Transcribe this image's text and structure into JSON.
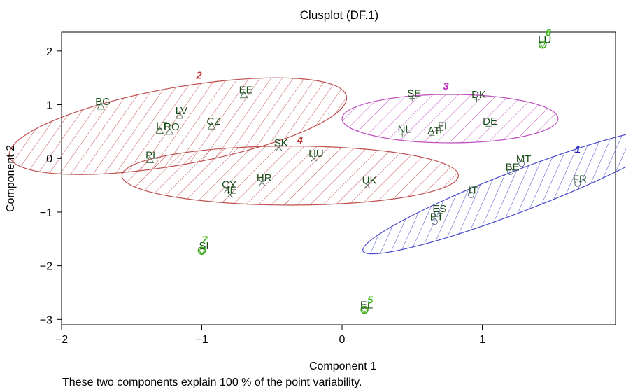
{
  "chart_data": {
    "type": "scatter",
    "title": "Clusplot (DF.1)",
    "xlabel": "Component 1",
    "ylabel": "Component 2",
    "subtitle": "These two components explain 100 % of the point variability.",
    "xlim": [
      -2.0,
      1.95
    ],
    "ylim": [
      -3.1,
      2.35
    ],
    "xticks": [
      -2,
      -1,
      0,
      1
    ],
    "yticks": [
      -3,
      -2,
      -1,
      0,
      1,
      2
    ],
    "xtick_labels": [
      "−2",
      "−1",
      "0",
      "1"
    ],
    "ytick_labels": [
      "−3",
      "−2",
      "−1",
      "0",
      "1",
      "2"
    ],
    "grid": false,
    "points": [
      {
        "label": "FR",
        "x": 1.68,
        "y": -0.47,
        "cluster": 1
      },
      {
        "label": "BE",
        "x": 1.2,
        "y": -0.25,
        "cluster": 1
      },
      {
        "label": "MT",
        "x": 1.28,
        "y": -0.1,
        "cluster": 1
      },
      {
        "label": "IT",
        "x": 0.92,
        "y": -0.68,
        "cluster": 1
      },
      {
        "label": "ES",
        "x": 0.68,
        "y": -1.03,
        "cluster": 1
      },
      {
        "label": "PT",
        "x": 0.66,
        "y": -1.18,
        "cluster": 1
      },
      {
        "label": "BG",
        "x": -1.72,
        "y": 0.97,
        "cluster": 2
      },
      {
        "label": "LV",
        "x": -1.16,
        "y": 0.8,
        "cluster": 2
      },
      {
        "label": "LT",
        "x": -1.3,
        "y": 0.52,
        "cluster": 2
      },
      {
        "label": "RO",
        "x": -1.23,
        "y": 0.5,
        "cluster": 2
      },
      {
        "label": "CZ",
        "x": -0.93,
        "y": 0.6,
        "cluster": 2
      },
      {
        "label": "EE",
        "x": -0.7,
        "y": 1.18,
        "cluster": 2
      },
      {
        "label": "PL",
        "x": -1.37,
        "y": -0.03,
        "cluster": 2
      },
      {
        "label": "SE",
        "x": 0.5,
        "y": 1.12,
        "cluster": 3
      },
      {
        "label": "DK",
        "x": 0.96,
        "y": 1.1,
        "cluster": 3
      },
      {
        "label": "FI",
        "x": 0.7,
        "y": 0.52,
        "cluster": 3
      },
      {
        "label": "NL",
        "x": 0.43,
        "y": 0.45,
        "cluster": 3
      },
      {
        "label": "AT",
        "x": 0.64,
        "y": 0.43,
        "cluster": 3
      },
      {
        "label": "DE",
        "x": 1.04,
        "y": 0.6,
        "cluster": 3
      },
      {
        "label": "SK",
        "x": -0.45,
        "y": 0.2,
        "cluster": 4
      },
      {
        "label": "HU",
        "x": -0.2,
        "y": 0.0,
        "cluster": 4
      },
      {
        "label": "HR",
        "x": -0.57,
        "y": -0.45,
        "cluster": 4
      },
      {
        "label": "CY",
        "x": -0.82,
        "y": -0.58,
        "cluster": 4
      },
      {
        "label": "IE",
        "x": -0.8,
        "y": -0.68,
        "cluster": 4
      },
      {
        "label": "UK",
        "x": 0.18,
        "y": -0.5,
        "cluster": 4
      },
      {
        "label": "EL",
        "x": 0.16,
        "y": -2.82,
        "cluster": 5
      },
      {
        "label": "LU",
        "x": 1.43,
        "y": 2.12,
        "cluster": 6
      },
      {
        "label": "SI",
        "x": -1.0,
        "y": -1.72,
        "cluster": 7
      }
    ],
    "cluster_labels": [
      {
        "text": "1",
        "x": 1.68,
        "y": 0.1,
        "cluster": 1
      },
      {
        "text": "2",
        "x": -1.02,
        "y": 1.48,
        "cluster": 2
      },
      {
        "text": "3",
        "x": 0.74,
        "y": 1.28,
        "cluster": 3
      },
      {
        "text": "4",
        "x": -0.3,
        "y": 0.28,
        "cluster": 4
      },
      {
        "text": "5",
        "x": 0.2,
        "y": -2.7,
        "cluster": 5
      },
      {
        "text": "6",
        "x": 1.47,
        "y": 2.28,
        "cluster": 6
      },
      {
        "text": "7",
        "x": -0.98,
        "y": -1.58,
        "cluster": 7
      }
    ],
    "ellipses": [
      {
        "cluster": 1,
        "cx": 1.27,
        "cy": -0.6,
        "rx": 1.2,
        "ry": 0.38,
        "angle": 21,
        "color": "#4848c8"
      },
      {
        "cluster": 2,
        "cx": -1.17,
        "cy": 0.6,
        "rx": 1.22,
        "ry": 0.72,
        "angle": 10,
        "color": "#c05050"
      },
      {
        "cluster": 3,
        "cx": 0.77,
        "cy": 0.74,
        "rx": 0.77,
        "ry": 0.45,
        "angle": 0,
        "color": "#c050c0"
      },
      {
        "cluster": 4,
        "cx": -0.37,
        "cy": -0.32,
        "rx": 1.2,
        "ry": 0.55,
        "angle": 0,
        "color": "#c05050"
      }
    ],
    "cluster_label_colors": {
      "1": "#2020b0",
      "2": "#c03030",
      "3": "#c030c0",
      "4": "#c03030",
      "5": "#44bb22",
      "6": "#44bb22",
      "7": "#44bb22"
    },
    "point_colors": {
      "1": "#5a6b7a",
      "2": "#5a7a5a",
      "3": "#5a7a5a",
      "4": "#5a6b5a",
      "5": "#44aa22",
      "6": "#44aa22",
      "7": "#44aa22"
    }
  }
}
